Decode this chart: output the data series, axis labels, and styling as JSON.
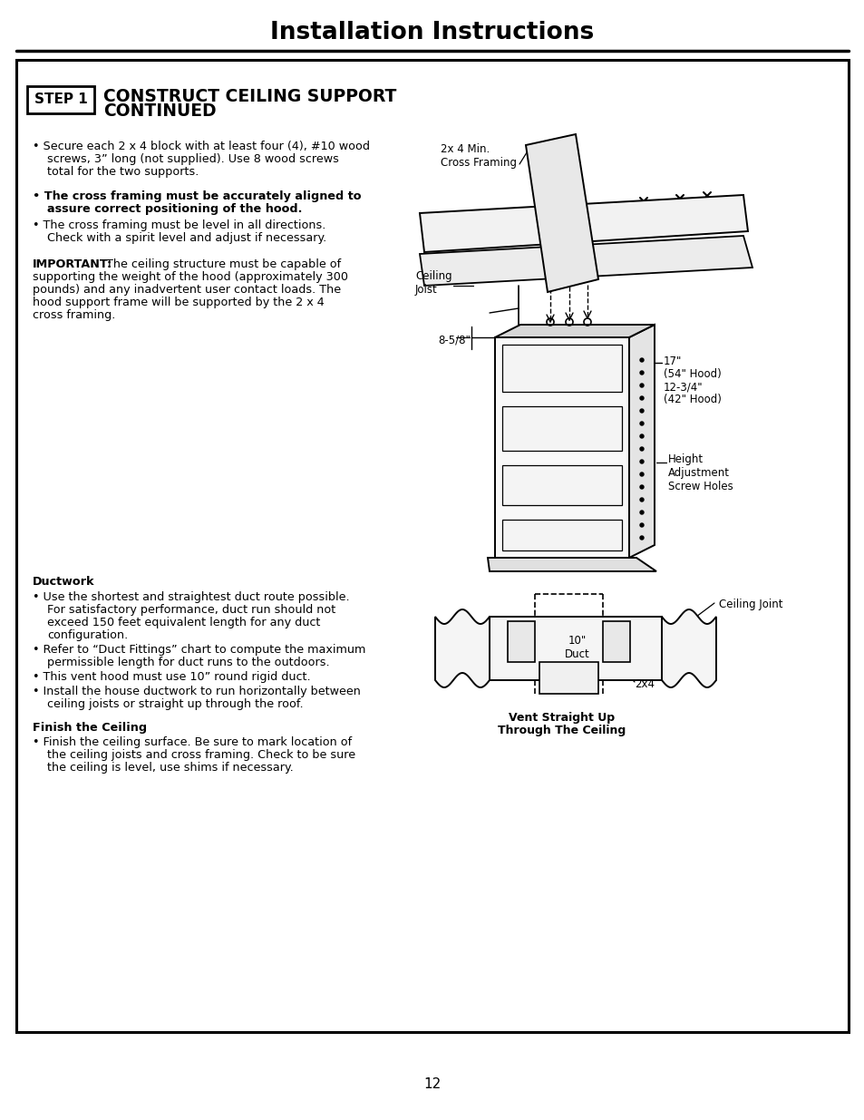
{
  "title": "Installation Instructions",
  "page_number": "12",
  "bg_color": "#ffffff",
  "step_label": "STEP 1",
  "step_title_line1": "CONSTRUCT CEILING SUPPORT",
  "step_title_line2": "CONTINUED",
  "important_label": "IMPORTANT:",
  "ductwork_title": "Ductwork",
  "finish_title": "Finish the Ceiling",
  "diagram1": {
    "cross_framing_label": "2x 4 Min.\nCross Framing",
    "ceiling_joist_label": "Ceiling\nJoist",
    "dim_85": "8-5/8\"",
    "dim_17": "17\"",
    "hood_54": "(54\" Hood)",
    "dim_1234": "12-3/4\"",
    "hood_42": "(42\" Hood)",
    "height_adj": "Height\nAdjustment\nScrew Holes"
  },
  "diagram2": {
    "ceiling_joint": "Ceiling Joint",
    "duct_10": "10\"\nDuct",
    "label_2x4": "2x4",
    "caption1": "Vent Straight Up",
    "caption2": "Through The Ceiling"
  }
}
